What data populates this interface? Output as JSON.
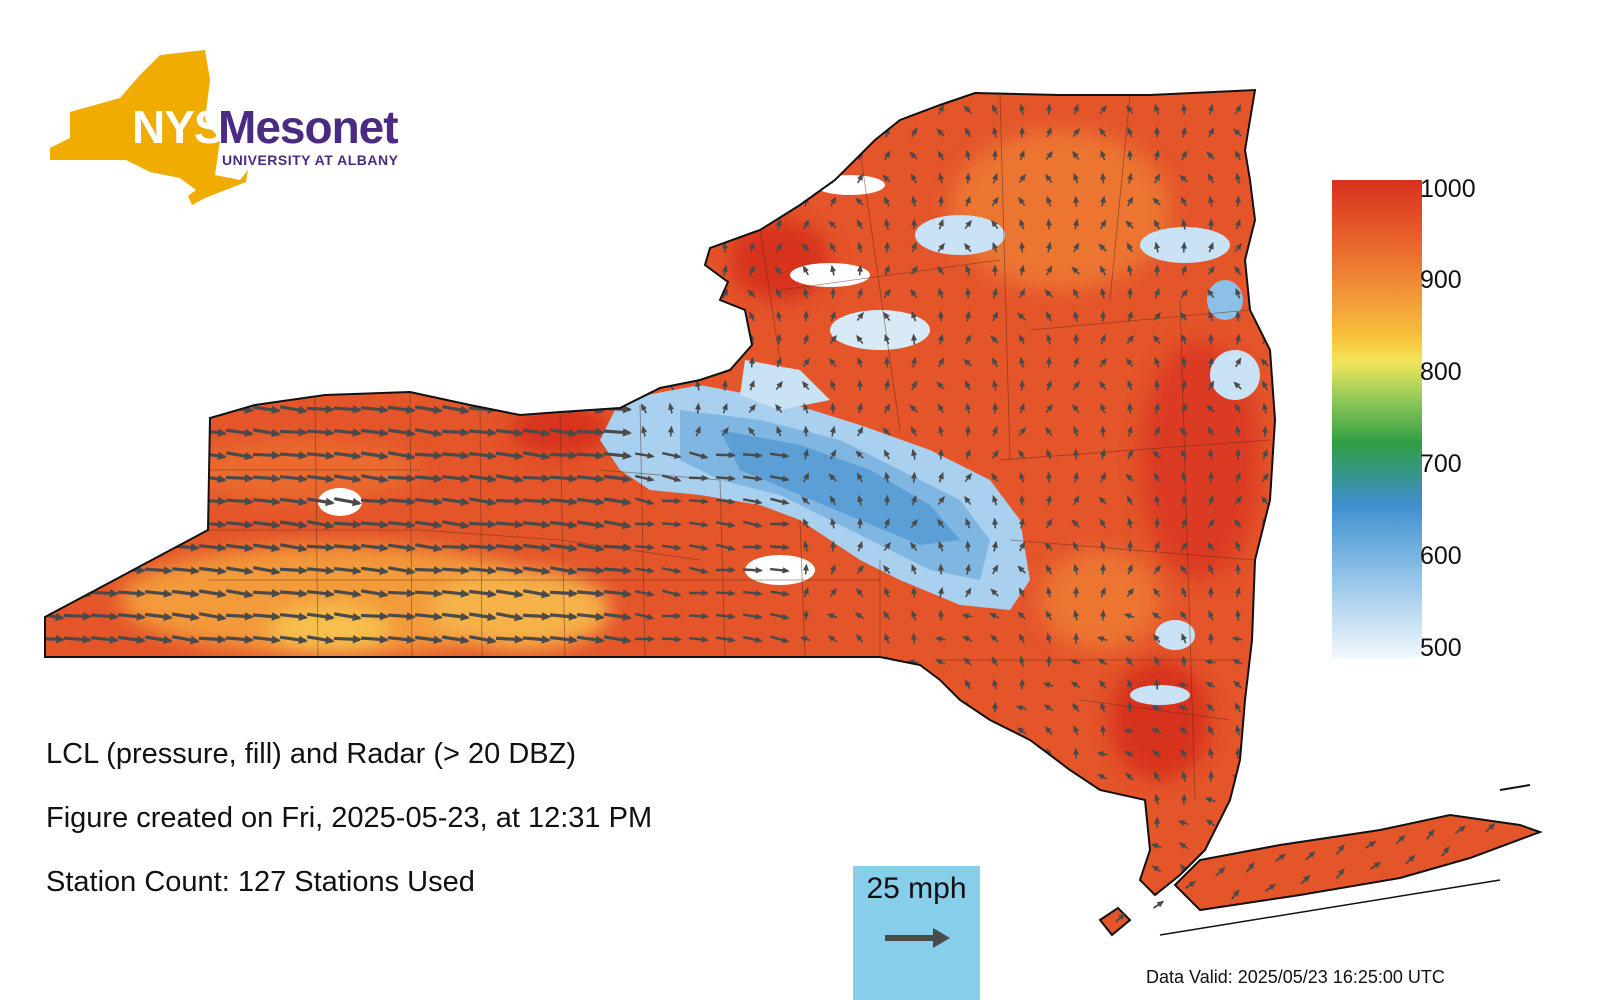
{
  "logo": {
    "nys": "NYS",
    "mesonet": "Mesonet",
    "university": "UNIVERSITY AT ALBANY",
    "state_color": "#f0ac00",
    "brand_color": "#4b2a82"
  },
  "info": {
    "title": "LCL (pressure, fill) and Radar (> 20 DBZ)",
    "created": "Figure created on Fri, 2025-05-23, at 12:31 PM",
    "stations": "Station Count: 127 Stations Used"
  },
  "colorbar": {
    "labels": [
      "1000",
      "900",
      "800",
      "700",
      "600",
      "500"
    ],
    "stops": [
      "#d7301f",
      "#e8602a",
      "#f08c2e",
      "#f6c23a",
      "#f2e65a",
      "#7cc45a",
      "#2f9e44",
      "#3f8fd0",
      "#8cc0e6",
      "#eef6fc"
    ]
  },
  "scale": {
    "label": "25 mph",
    "arrow": "arrow-right-icon"
  },
  "valid": "Data Valid: 2025/05/23 16:25:00 UTC",
  "colors": {
    "map_fill": "#e4552a",
    "warm_fill": "#f39a3a",
    "radar": "#a9d0ee",
    "arrow": "#4a4a4a",
    "outline": "#111111"
  }
}
